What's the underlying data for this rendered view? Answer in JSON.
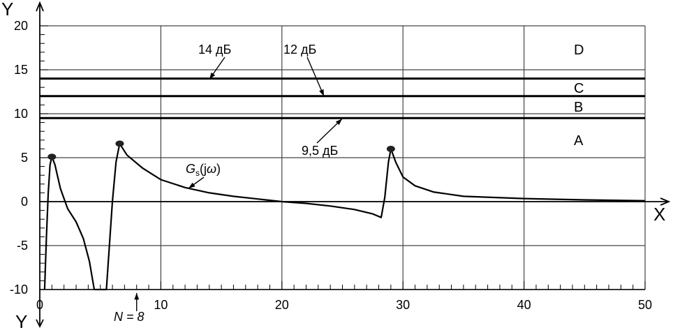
{
  "chart_data": {
    "type": "line",
    "xlabel": "X",
    "ylabel": "Y",
    "ylabel_bottom": "Y",
    "xlim": [
      0,
      50
    ],
    "ylim": [
      -10,
      20
    ],
    "x_ticks": [
      0,
      10,
      20,
      30,
      40,
      50
    ],
    "y_ticks": [
      -10,
      -5,
      0,
      5,
      10,
      15,
      20
    ],
    "grid": true,
    "thresholds": [
      {
        "y": 14,
        "label": "14 дБ"
      },
      {
        "y": 12,
        "label": "12 дБ"
      },
      {
        "y": 9.5,
        "label": "9,5 дБ"
      }
    ],
    "regions": [
      "D",
      "C",
      "B",
      "A"
    ],
    "marker": {
      "x": 8,
      "label": "N = 8"
    },
    "series": [
      {
        "name": "Gs(jω)",
        "peaks": [
          [
            1.0,
            5.1
          ],
          [
            6.6,
            6.6
          ],
          [
            29.0,
            6.0
          ]
        ],
        "points": [
          [
            0.4,
            -10
          ],
          [
            0.55,
            -4
          ],
          [
            0.7,
            1
          ],
          [
            0.85,
            4.2
          ],
          [
            1.0,
            5.1
          ],
          [
            1.25,
            4.2
          ],
          [
            1.7,
            1.5
          ],
          [
            2.3,
            -0.8
          ],
          [
            3.0,
            -2.3
          ],
          [
            3.6,
            -4.2
          ],
          [
            4.1,
            -6.8
          ],
          [
            4.5,
            -10
          ],
          [
            5.5,
            -10
          ],
          [
            5.75,
            -5
          ],
          [
            6.0,
            0
          ],
          [
            6.3,
            4.5
          ],
          [
            6.6,
            6.6
          ],
          [
            7.2,
            5.3
          ],
          [
            8.5,
            3.8
          ],
          [
            10,
            2.5
          ],
          [
            12,
            1.6
          ],
          [
            14,
            1.0
          ],
          [
            16,
            0.6
          ],
          [
            18,
            0.3
          ],
          [
            20,
            0.0
          ],
          [
            22,
            -0.2
          ],
          [
            24,
            -0.5
          ],
          [
            26,
            -0.9
          ],
          [
            27.5,
            -1.4
          ],
          [
            28.2,
            -1.8
          ],
          [
            28.5,
            0.5
          ],
          [
            28.8,
            4.5
          ],
          [
            29.0,
            6.0
          ],
          [
            29.4,
            4.5
          ],
          [
            30.0,
            2.8
          ],
          [
            31,
            1.8
          ],
          [
            32.5,
            1.1
          ],
          [
            35,
            0.6
          ],
          [
            40,
            0.35
          ],
          [
            45,
            0.2
          ],
          [
            50,
            0.1
          ]
        ]
      }
    ]
  }
}
